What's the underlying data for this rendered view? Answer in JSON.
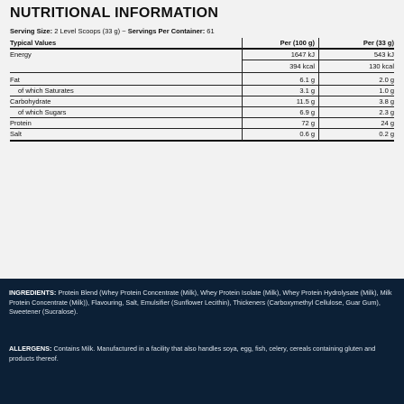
{
  "panel": {
    "title": "NUTRITIONAL INFORMATION",
    "serving": {
      "size_label": "Serving Size:",
      "size_value": "2 Level Scoops (33 g)",
      "separator": "~",
      "per_container_label": "Servings Per Container:",
      "per_container_value": "61"
    },
    "table": {
      "header": {
        "label": "Typical Values",
        "col1": "Per (100 g)",
        "col2": "Per (33 g)"
      },
      "rows": [
        {
          "label": "Energy",
          "col1": "1647 kJ",
          "col2": "543 kJ"
        },
        {
          "label": "",
          "col1": "394 kcal",
          "col2": "130 kcal"
        },
        {
          "label": "Fat",
          "col1": "6.1 g",
          "col2": "2.0 g"
        },
        {
          "label": "of which Saturates",
          "col1": "3.1 g",
          "col2": "1.0 g"
        },
        {
          "label": "Carbohydrate",
          "col1": "11.5 g",
          "col2": "3.8 g"
        },
        {
          "label": "of which Sugars",
          "col1": "6.9 g",
          "col2": "2.3 g"
        },
        {
          "label": "Protein",
          "col1": "72 g",
          "col2": "24 g"
        },
        {
          "label": "Salt",
          "col1": "0.6 g",
          "col2": "0.2 g"
        }
      ]
    }
  },
  "ingredients": {
    "label": "INGREDIENTS:",
    "text": "Protein Blend (Whey Protein Concentrate (Milk), Whey Protein Isolate (Milk), Whey Protein Hydrolysate (Milk), Milk Protein Concentrate (Milk)), Flavouring, Salt, Emulsifier (Sunflower Lecithin), Thickeners (Carboxymethyl Cellulose, Guar Gum), Sweetener (Sucralose)."
  },
  "allergens": {
    "label": "ALLERGENS:",
    "text": "Contains Milk. Manufactured in a facility that also handles soya, egg, fish, celery, cereals containing gluten and products thereof."
  }
}
